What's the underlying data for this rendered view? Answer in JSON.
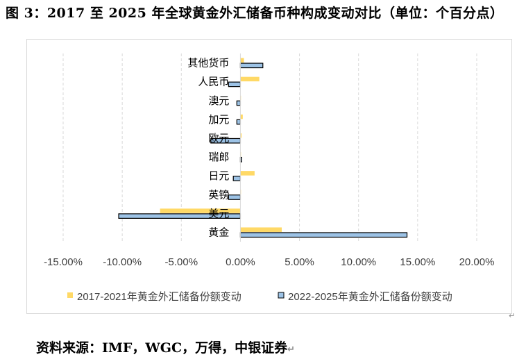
{
  "figure": {
    "title": "图 3：2017 至 2025 年全球黄金外汇储备币种构成变动对比（单位：个百分点）",
    "source": "资料来源：IMF，WGC，万得，中银证券",
    "para_mark": "↵"
  },
  "chart_data": {
    "type": "bar",
    "orientation": "horizontal",
    "title": "",
    "xlabel": "",
    "ylabel": "",
    "categories": [
      "其他货币",
      "人民币",
      "澳元",
      "加元",
      "欧元",
      "瑞郎",
      "日元",
      "英镑",
      "美元",
      "黄金"
    ],
    "series": [
      {
        "name": "2017-2021年黄金外汇储备份额变动",
        "color": "#ffd966",
        "values": [
          0.3,
          1.6,
          0.0,
          0.2,
          0.1,
          0.0,
          1.2,
          0.0,
          -6.8,
          3.5
        ]
      },
      {
        "name": "2022-2025年黄金外汇储备份额变动",
        "color": "#9dc3e6",
        "values": [
          1.9,
          -1.0,
          -0.3,
          -0.3,
          -2.5,
          0.1,
          -0.6,
          -1.0,
          -10.3,
          14.1
        ]
      }
    ],
    "xlim": [
      -15,
      20
    ],
    "xticks": [
      -15,
      -10,
      -5,
      0,
      5,
      10,
      15,
      20
    ],
    "xtick_labels": [
      "-15.00%",
      "-10.00%",
      "-5.00%",
      "0.00%",
      "5.00%",
      "10.00%",
      "15.00%",
      "20.00%"
    ],
    "grid": "vertical dashed",
    "legend_position": "bottom"
  }
}
